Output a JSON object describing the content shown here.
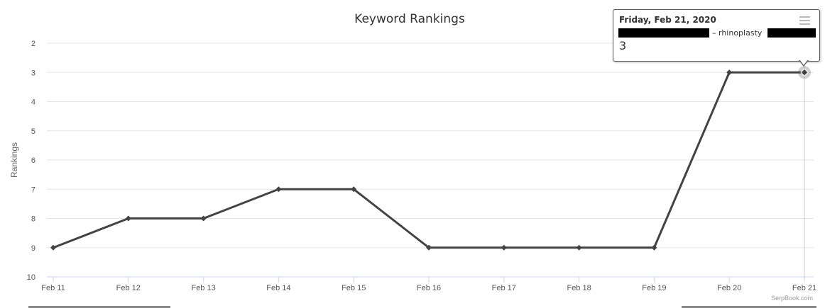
{
  "chart_data": {
    "type": "line",
    "title": "Keyword Rankings",
    "ylabel": "Rankings",
    "xlabel": "",
    "categories": [
      "Feb 11",
      "Feb 12",
      "Feb 13",
      "Feb 14",
      "Feb 15",
      "Feb 16",
      "Feb 17",
      "Feb 18",
      "Feb 19",
      "Feb 20",
      "Feb 21"
    ],
    "series": [
      {
        "name": "rhinoplasty",
        "values": [
          9,
          8,
          8,
          7,
          7,
          9,
          9,
          9,
          9,
          3,
          3
        ]
      }
    ],
    "yticks": [
      2,
      3,
      4,
      5,
      6,
      7,
      8,
      9,
      10
    ],
    "ylim": [
      2,
      10
    ],
    "y_reversed": true,
    "grid": true,
    "colors": {
      "line": "#434343",
      "grid": "#e6e6e6",
      "axis": "#ccd6eb"
    },
    "credit": "SerpBook.com"
  },
  "tooltip": {
    "date": "Friday, Feb 21, 2020",
    "series_label": "– rhinoplasty",
    "value": "3"
  }
}
